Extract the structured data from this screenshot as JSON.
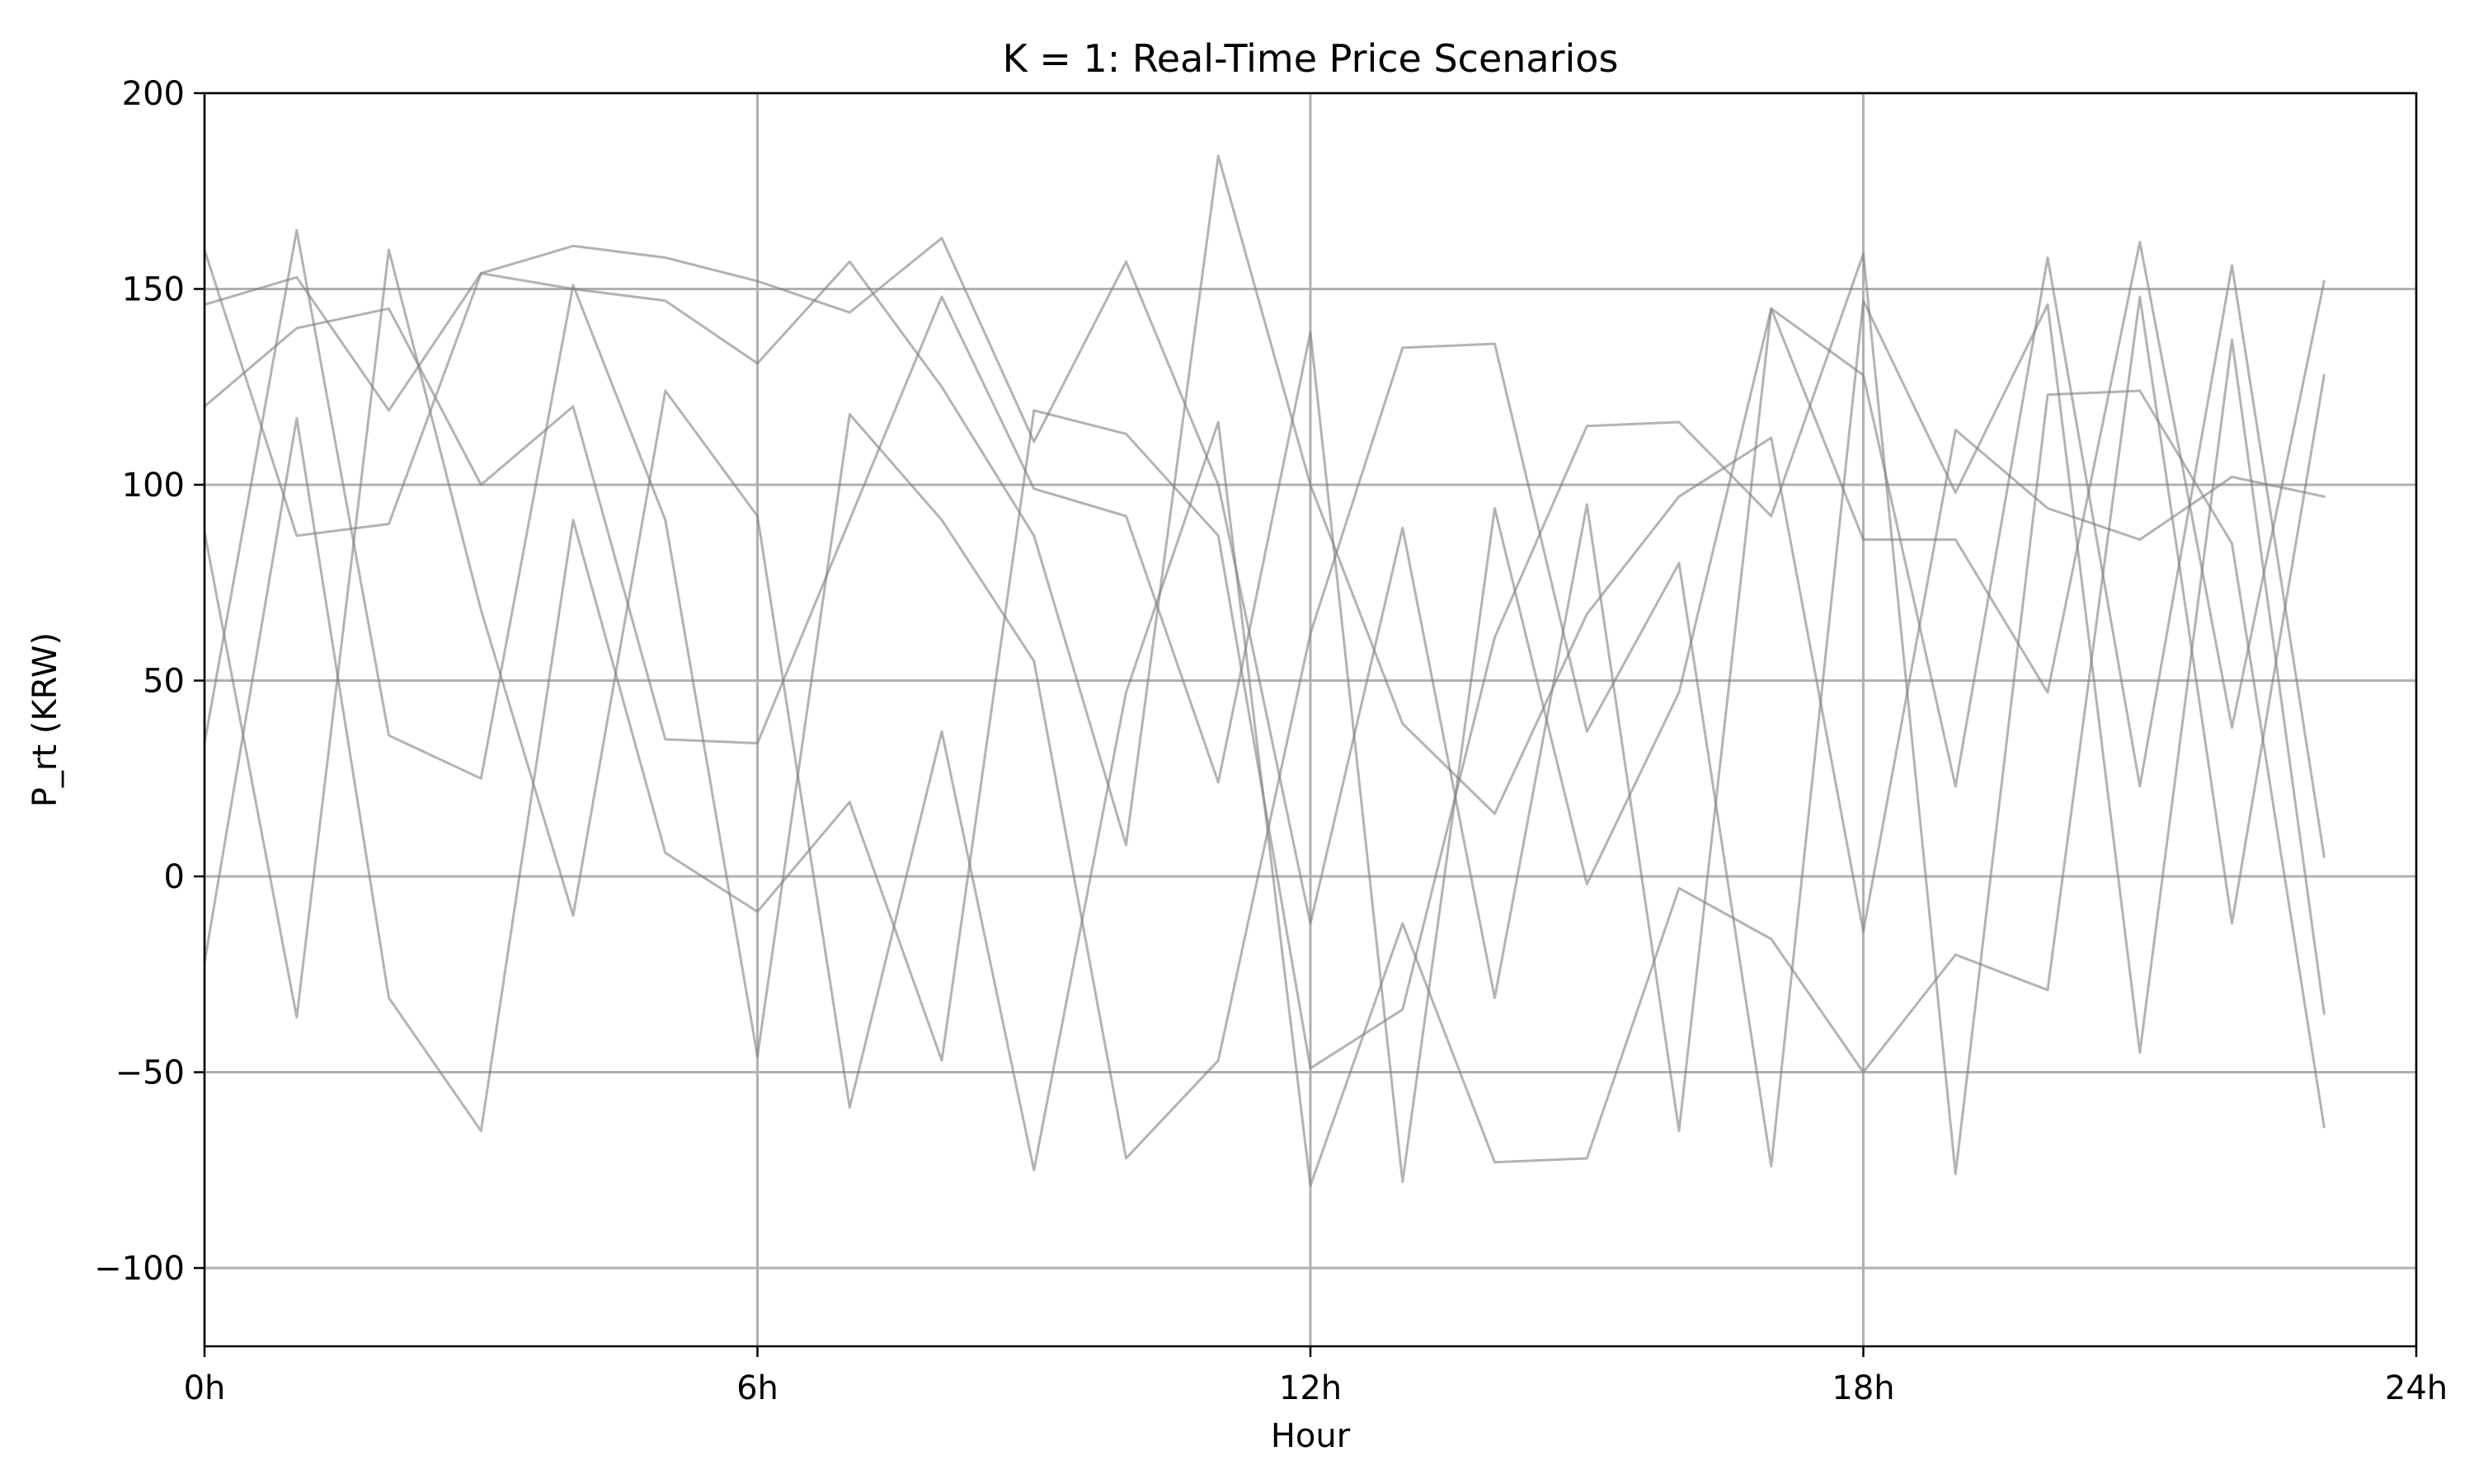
{
  "chart_data": {
    "type": "line",
    "title": "K = 1: Real-Time Price Scenarios",
    "xlabel": "Hour",
    "ylabel": "P_rt (KRW)",
    "xlim": [
      0,
      24
    ],
    "ylim": [
      -120,
      200
    ],
    "x_ticks": [
      {
        "value": 0,
        "label": "0h"
      },
      {
        "value": 6,
        "label": "6h"
      },
      {
        "value": 12,
        "label": "12h"
      },
      {
        "value": 18,
        "label": "18h"
      },
      {
        "value": 24,
        "label": "24h"
      }
    ],
    "y_ticks": [
      {
        "value": -100,
        "label": "−100"
      },
      {
        "value": -50,
        "label": "−50"
      },
      {
        "value": 0,
        "label": "0"
      },
      {
        "value": 50,
        "label": "50"
      },
      {
        "value": 100,
        "label": "100"
      },
      {
        "value": 150,
        "label": "150"
      },
      {
        "value": 200,
        "label": "200"
      }
    ],
    "grid": true,
    "line_color": "#808080",
    "line_opacity": 0.6,
    "x": [
      0,
      1,
      2,
      3,
      4,
      5,
      6,
      7,
      8,
      9,
      10,
      11,
      12,
      13,
      14,
      15,
      16,
      17,
      18,
      19,
      20,
      21,
      22,
      23
    ],
    "series": [
      {
        "values": [
          146,
          153,
          119,
          154,
          161,
          158,
          152,
          144,
          163,
          111,
          157,
          100,
          -12,
          89,
          -31,
          95,
          -65,
          145,
          128,
          23,
          158,
          23,
          156,
          5
        ]
      },
      {
        "values": [
          160,
          87,
          90,
          154,
          150,
          147,
          131,
          157,
          125,
          87,
          8,
          184,
          100,
          39,
          16,
          67,
          97,
          112,
          -14,
          114,
          94,
          86,
          102,
          97
        ]
      },
      {
        "values": [
          120,
          140,
          145,
          100,
          120,
          35,
          34,
          91,
          148,
          99,
          92,
          24,
          139,
          -78,
          94,
          -2,
          47,
          145,
          86,
          86,
          47,
          162,
          38,
          152
        ]
      },
      {
        "values": [
          -22,
          117,
          -31,
          -65,
          91,
          6,
          -9,
          19,
          -47,
          119,
          113,
          87,
          -49,
          -34,
          61,
          115,
          116,
          92,
          159,
          -76,
          123,
          124,
          85,
          -64
        ]
      },
      {
        "values": [
          34,
          165,
          36,
          25,
          151,
          91,
          -46,
          118,
          91,
          55,
          -72,
          -47,
          62,
          135,
          136,
          37,
          80,
          -74,
          147,
          98,
          146,
          -45,
          137,
          -35
        ]
      },
      {
        "values": [
          88,
          -36,
          160,
          68,
          -10,
          124,
          92,
          -59,
          37,
          -75,
          47,
          116,
          -79,
          -12,
          -73,
          -72,
          -3,
          -16,
          -50,
          -20,
          -29,
          148,
          -12,
          128
        ]
      }
    ]
  }
}
